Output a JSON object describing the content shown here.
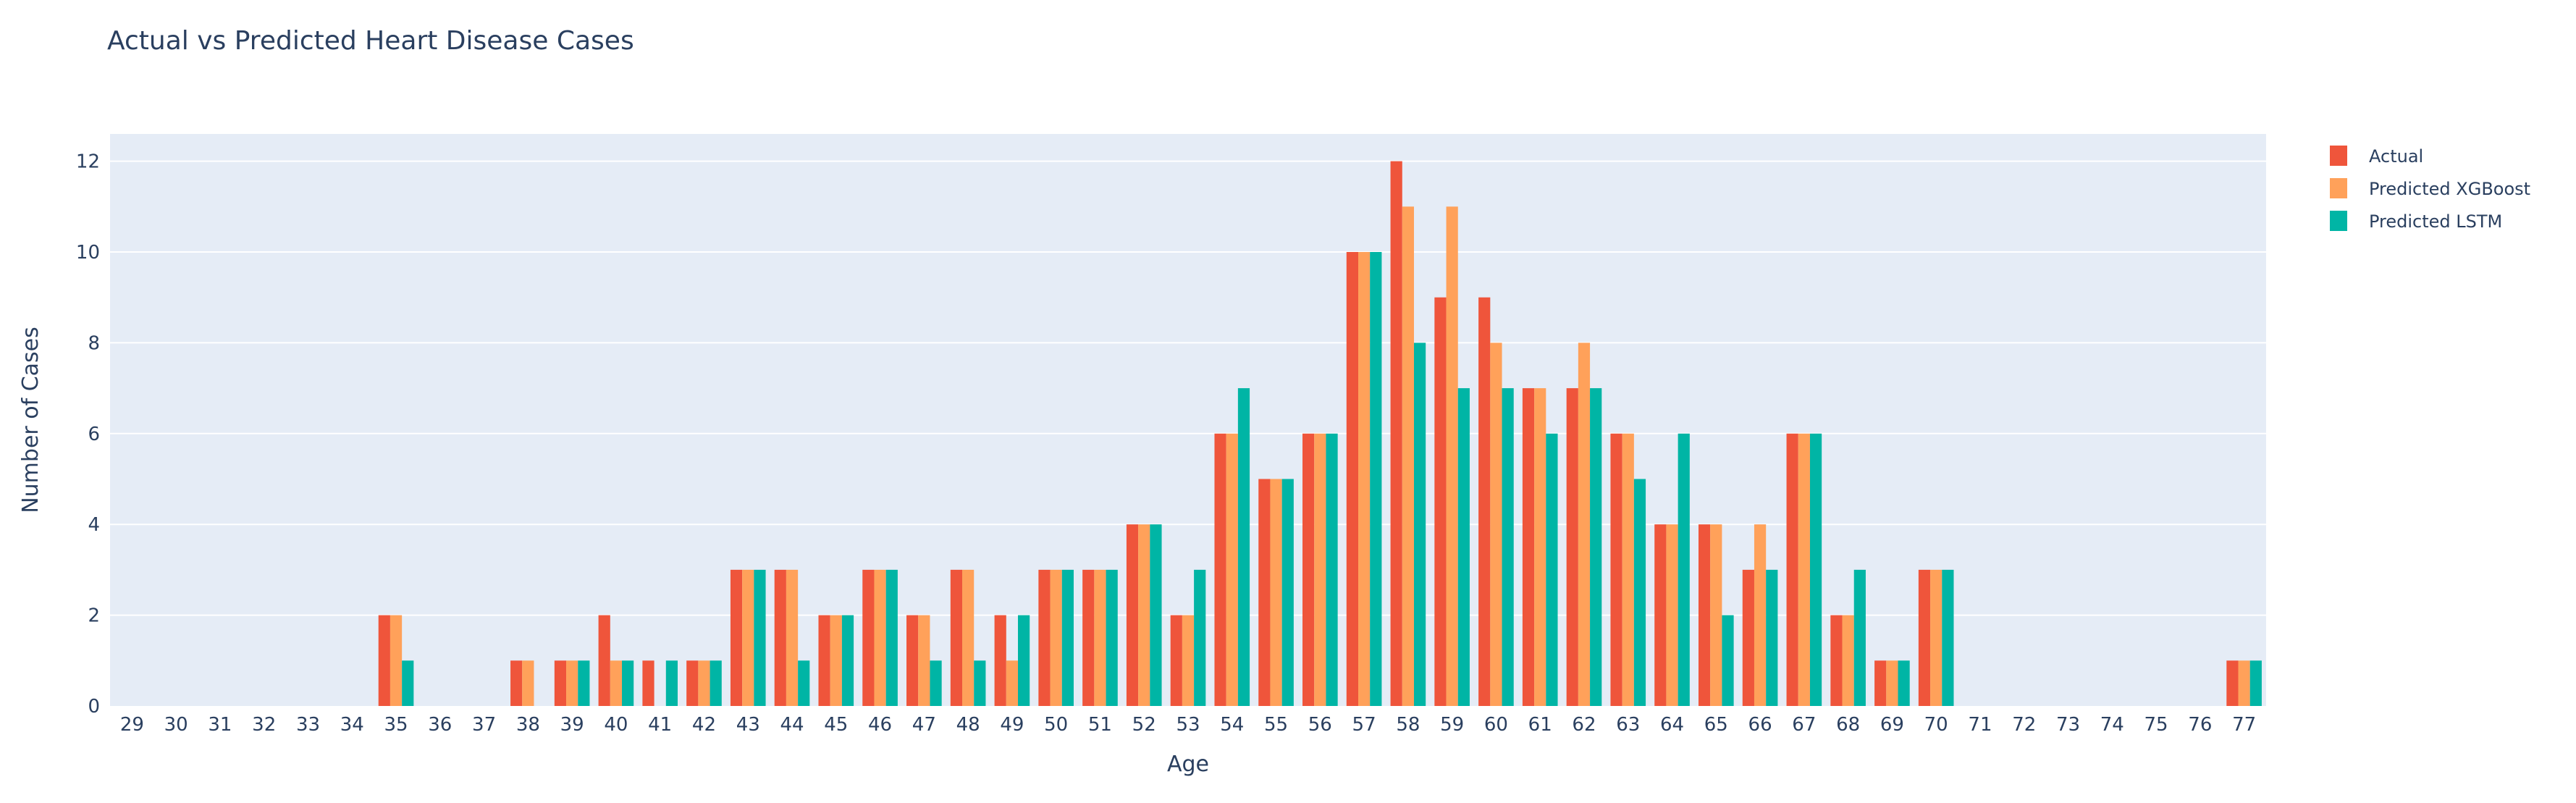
{
  "chart_data": {
    "type": "bar",
    "title": "Actual vs Predicted Heart Disease Cases",
    "xlabel": "Age",
    "ylabel": "Number of Cases",
    "ylim": [
      0,
      12.6
    ],
    "yticks": [
      0,
      2,
      4,
      6,
      8,
      10,
      12
    ],
    "grid": true,
    "legend_position": "top-right",
    "categories": [
      "29",
      "30",
      "31",
      "32",
      "33",
      "34",
      "35",
      "36",
      "37",
      "38",
      "39",
      "40",
      "41",
      "42",
      "43",
      "44",
      "45",
      "46",
      "47",
      "48",
      "49",
      "50",
      "51",
      "52",
      "53",
      "54",
      "55",
      "56",
      "57",
      "58",
      "59",
      "60",
      "61",
      "62",
      "63",
      "64",
      "65",
      "66",
      "67",
      "68",
      "69",
      "70",
      "71",
      "72",
      "73",
      "74",
      "75",
      "76",
      "77"
    ],
    "series": [
      {
        "name": "Actual",
        "color": "#EF553B",
        "values": [
          0,
          0,
          0,
          0,
          0,
          0,
          2,
          0,
          0,
          1,
          1,
          2,
          1,
          1,
          3,
          3,
          2,
          3,
          2,
          3,
          2,
          3,
          3,
          4,
          2,
          6,
          5,
          6,
          10,
          12,
          9,
          9,
          7,
          7,
          6,
          4,
          4,
          3,
          6,
          2,
          1,
          3,
          0,
          0,
          0,
          0,
          0,
          0,
          1
        ]
      },
      {
        "name": "Predicted XGBoost",
        "color": "#FFA15A",
        "values": [
          0,
          0,
          0,
          0,
          0,
          0,
          2,
          0,
          0,
          1,
          1,
          1,
          0,
          1,
          3,
          3,
          2,
          3,
          2,
          3,
          1,
          3,
          3,
          4,
          2,
          6,
          5,
          6,
          10,
          11,
          11,
          8,
          7,
          8,
          6,
          4,
          4,
          4,
          6,
          2,
          1,
          3,
          0,
          0,
          0,
          0,
          0,
          0,
          1
        ]
      },
      {
        "name": "Predicted LSTM",
        "color": "#00B5A5",
        "values": [
          0,
          0,
          0,
          0,
          0,
          0,
          1,
          0,
          0,
          0,
          1,
          1,
          1,
          1,
          3,
          1,
          2,
          3,
          1,
          1,
          2,
          3,
          3,
          4,
          3,
          7,
          5,
          6,
          10,
          8,
          7,
          7,
          6,
          7,
          5,
          6,
          2,
          3,
          6,
          3,
          1,
          3,
          0,
          0,
          0,
          0,
          0,
          0,
          1
        ]
      }
    ]
  },
  "colors": {
    "plot_background": "#E5ECF6",
    "gridline": "#ffffff",
    "text": "#2a3f5f"
  }
}
